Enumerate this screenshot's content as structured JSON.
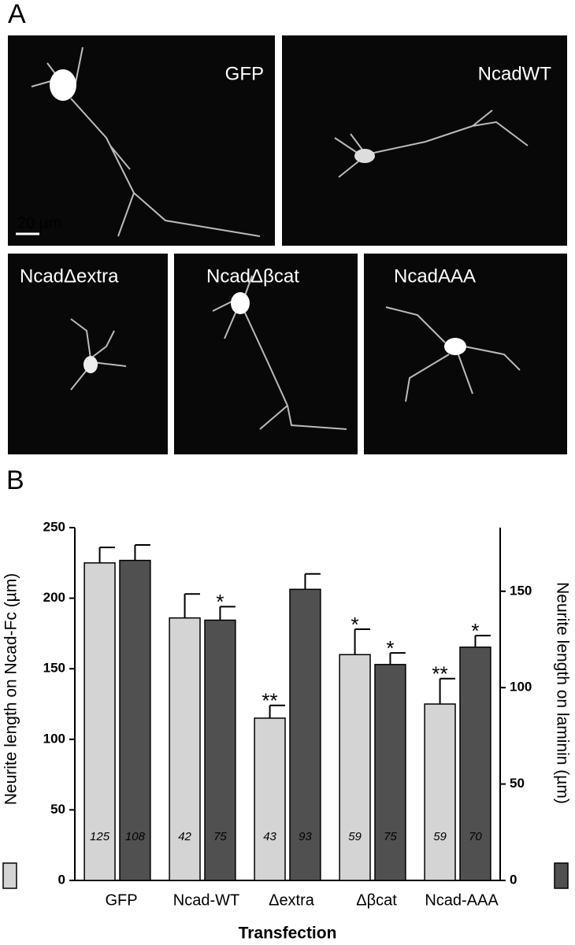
{
  "figure": {
    "panel_labels": [
      "A",
      "B"
    ],
    "micrographs": [
      "GFP",
      "NcadWT",
      "NcadΔextra",
      "NcadΔβcat",
      "NcadAAA"
    ],
    "scale_bar": "20 µm"
  },
  "chart_data": {
    "type": "bar",
    "categories": [
      "GFP",
      "Ncad-WT",
      "Δextra",
      "Δβcat",
      "Ncad-AAA"
    ],
    "x_label": "Transfection",
    "y_label": "Neurite length on Ncad-Fc (µm)",
    "y2_label": "Neurite length on laminin (µm)",
    "ylim": [
      0,
      250
    ],
    "yticks": [
      0,
      50,
      100,
      150,
      200,
      250
    ],
    "y2lim": [
      0,
      183
    ],
    "y2ticks": [
      0,
      50,
      100,
      150
    ],
    "series": [
      {
        "color": "#d4d4d4",
        "values": [
          225,
          186,
          115,
          160,
          125
        ],
        "errors": [
          11,
          17,
          9,
          18,
          18
        ],
        "n": [
          125,
          42,
          43,
          59,
          59
        ],
        "significance": [
          null,
          null,
          "**",
          "*",
          "**"
        ]
      },
      {
        "color": "#505050",
        "axis": "y2",
        "values": [
          166,
          135,
          151,
          112,
          121
        ],
        "errors": [
          8,
          7,
          8,
          6,
          6
        ],
        "n": [
          108,
          75,
          93,
          75,
          70
        ],
        "significance": [
          null,
          "*",
          null,
          "*",
          "*"
        ]
      }
    ]
  }
}
